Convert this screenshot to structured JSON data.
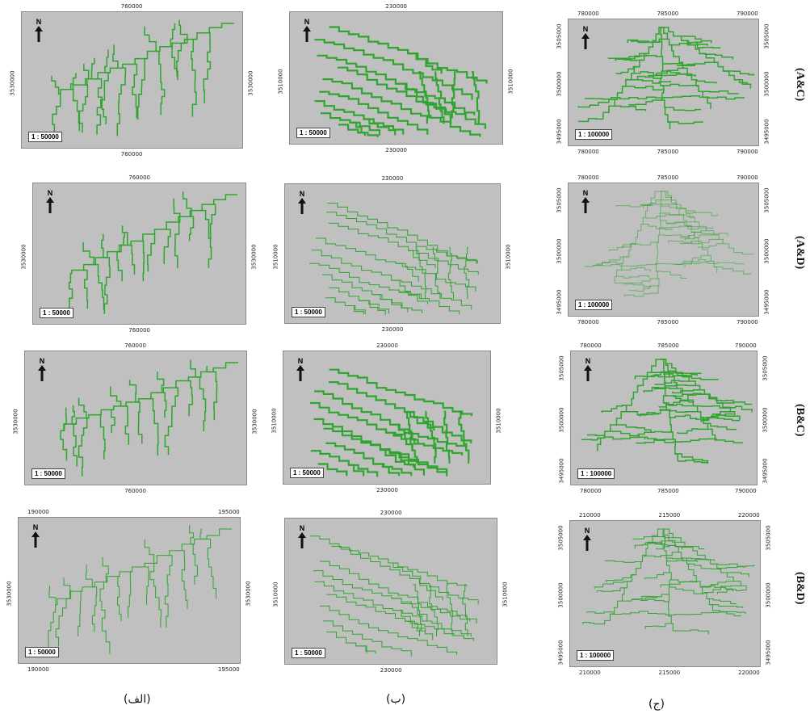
{
  "columns": [
    {
      "label": "(الف)"
    },
    {
      "label": "(ب)"
    },
    {
      "label": "(ج)"
    }
  ],
  "rows": [
    {
      "label": "(A&C)"
    },
    {
      "label": "(A&D)"
    },
    {
      "label": "(B&C)"
    },
    {
      "label": "(B&D)"
    }
  ],
  "north_label": "N",
  "colors": {
    "map_background": "#c0c0c0",
    "stream": "#2fa52f"
  },
  "maps": [
    {
      "top": [
        "760000"
      ],
      "bottom": [
        "760000"
      ],
      "left": [
        "3530000"
      ],
      "right": [
        "3530000"
      ],
      "scale": "1 : 50000"
    },
    {
      "top": [
        "230000"
      ],
      "bottom": [
        "230000"
      ],
      "left": [
        "3510000"
      ],
      "right": [
        "3510000"
      ],
      "scale": "1 : 50000"
    },
    {
      "top": [
        "780000",
        "785000",
        "790000"
      ],
      "bottom": [
        "780000",
        "785000",
        "790000"
      ],
      "left": [
        "3505000",
        "3500000",
        "3495000"
      ],
      "right": [
        "3505000",
        "3500000",
        "3495000"
      ],
      "scale": "1 : 100000"
    },
    {
      "top": [
        "760000"
      ],
      "bottom": [
        "760000"
      ],
      "left": [
        "3530000"
      ],
      "right": [
        "3530000"
      ],
      "scale": "1 : 50000"
    },
    {
      "top": [
        "230000"
      ],
      "bottom": [
        "230000"
      ],
      "left": [
        "3510000"
      ],
      "right": [
        "3510000"
      ],
      "scale": "1 : 50000"
    },
    {
      "top": [
        "780000",
        "785000",
        "790000"
      ],
      "bottom": [
        "780000",
        "785000",
        "790000"
      ],
      "left": [
        "3505000",
        "3500000",
        "3495000"
      ],
      "right": [
        "3505000",
        "3500000",
        "3495000"
      ],
      "scale": "1 : 100000"
    },
    {
      "top": [
        "760000"
      ],
      "bottom": [
        "760000"
      ],
      "left": [
        "3530000"
      ],
      "right": [
        "3530000"
      ],
      "scale": "1 : 50000"
    },
    {
      "top": [
        "230000"
      ],
      "bottom": [
        "230000"
      ],
      "left": [
        "3510000"
      ],
      "right": [
        "3510000"
      ],
      "scale": "1 : 50000"
    },
    {
      "top": [
        "780000",
        "785000",
        "790000"
      ],
      "bottom": [
        "780000",
        "785000",
        "790000"
      ],
      "left": [
        "3505000",
        "3500000",
        "3495000"
      ],
      "right": [
        "3505000",
        "3500000",
        "3495000"
      ],
      "scale": "1 : 100000"
    },
    {
      "top": [
        "190000",
        "195000"
      ],
      "bottom": [
        "190000",
        "195000"
      ],
      "left": [
        "3530000"
      ],
      "right": [
        "3530000"
      ],
      "scale": "1 : 50000"
    },
    {
      "top": [
        "230000"
      ],
      "bottom": [
        "230000"
      ],
      "left": [
        "3510000"
      ],
      "right": [
        "3510000"
      ],
      "scale": "1 : 50000"
    },
    {
      "top": [
        "210000",
        "215000",
        "220000"
      ],
      "bottom": [
        "210000",
        "215000",
        "220000"
      ],
      "left": [
        "3505000",
        "3500000",
        "3495000"
      ],
      "right": [
        "3505000",
        "3500000",
        "3495000"
      ],
      "scale": "1 : 100000"
    }
  ]
}
